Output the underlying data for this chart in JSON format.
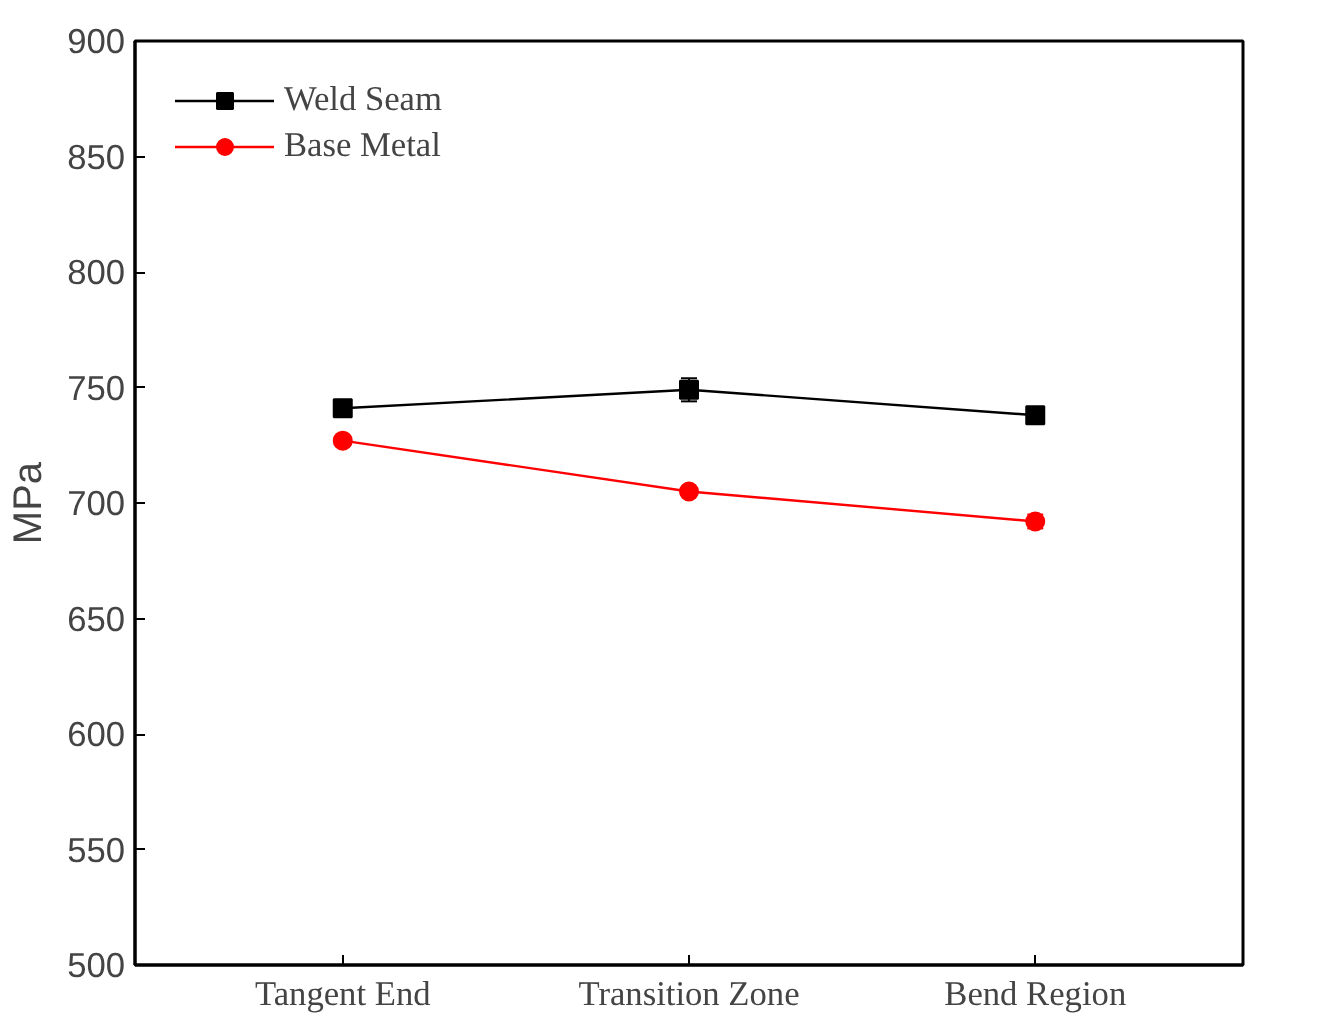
{
  "chart_data": {
    "type": "line",
    "ylabel": "MPa",
    "categories": [
      "Tangent End",
      "Transition Zone",
      "Bend Region"
    ],
    "ylim": [
      500,
      900
    ],
    "yticks": [
      500,
      550,
      600,
      650,
      700,
      750,
      800,
      850,
      900
    ],
    "grid": false,
    "legend": "top left",
    "series": [
      {
        "name": "Weld Seam",
        "color": "#000000",
        "marker": "square",
        "values": [
          741,
          749,
          738
        ],
        "errors": [
          2,
          5,
          3
        ]
      },
      {
        "name": "Base Metal",
        "color": "#ff0000",
        "marker": "circle",
        "values": [
          727,
          705,
          692
        ],
        "errors": [
          2,
          1,
          3
        ]
      }
    ]
  }
}
